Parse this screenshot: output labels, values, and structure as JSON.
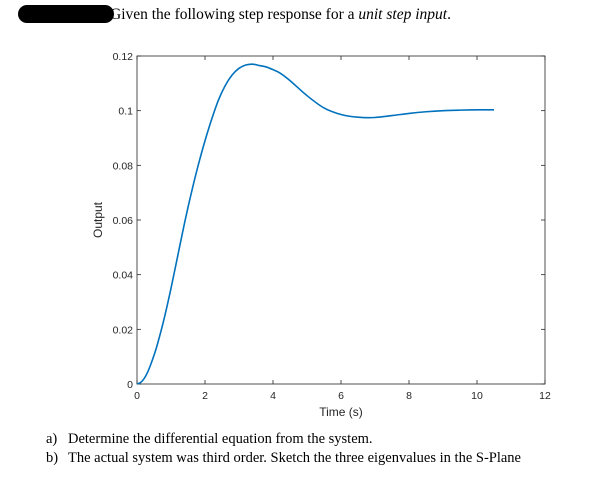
{
  "intro": {
    "lead": "Given the following step response for a",
    "emphasis": "unit step input",
    "end": "."
  },
  "chart_data": {
    "type": "line",
    "title": "",
    "xlabel": "Time (s)",
    "ylabel": "Output",
    "xlim": [
      0,
      12
    ],
    "ylim": [
      0,
      0.12
    ],
    "xticks": [
      "0",
      "2",
      "4",
      "6",
      "8",
      "10",
      "12"
    ],
    "yticks": [
      "0",
      "0.02",
      "0.04",
      "0.06",
      "0.08",
      "0.1",
      "0.12"
    ],
    "grid": false,
    "line_color": "#0072BD",
    "x": [
      0,
      0.1,
      0.2,
      0.3,
      0.4,
      0.5,
      0.6,
      0.8,
      1.0,
      1.2,
      1.4,
      1.6,
      1.8,
      2.0,
      2.2,
      2.4,
      2.6,
      2.8,
      3.0,
      3.2,
      3.4,
      3.6,
      3.8,
      4.0,
      4.2,
      4.5,
      5.0,
      5.5,
      6.0,
      6.5,
      7.0,
      7.5,
      8.0,
      8.5,
      9.0,
      9.5,
      10.0,
      10.5
    ],
    "y": [
      0,
      0.0005,
      0.0018,
      0.004,
      0.007,
      0.0105,
      0.0145,
      0.024,
      0.035,
      0.047,
      0.059,
      0.07,
      0.08,
      0.089,
      0.097,
      0.104,
      0.1093,
      0.1131,
      0.1155,
      0.1167,
      0.117,
      0.1165,
      0.116,
      0.115,
      0.1138,
      0.111,
      0.1055,
      0.101,
      0.0986,
      0.0976,
      0.0975,
      0.0982,
      0.099,
      0.0996,
      0.1,
      0.1002,
      0.1003,
      0.1003
    ]
  },
  "questions": [
    {
      "tag": "a)",
      "text": "Determine the differential equation from the system."
    },
    {
      "tag": "b)",
      "text": "The actual system was third order. Sketch the three eigenvalues in the S-Plane"
    }
  ]
}
